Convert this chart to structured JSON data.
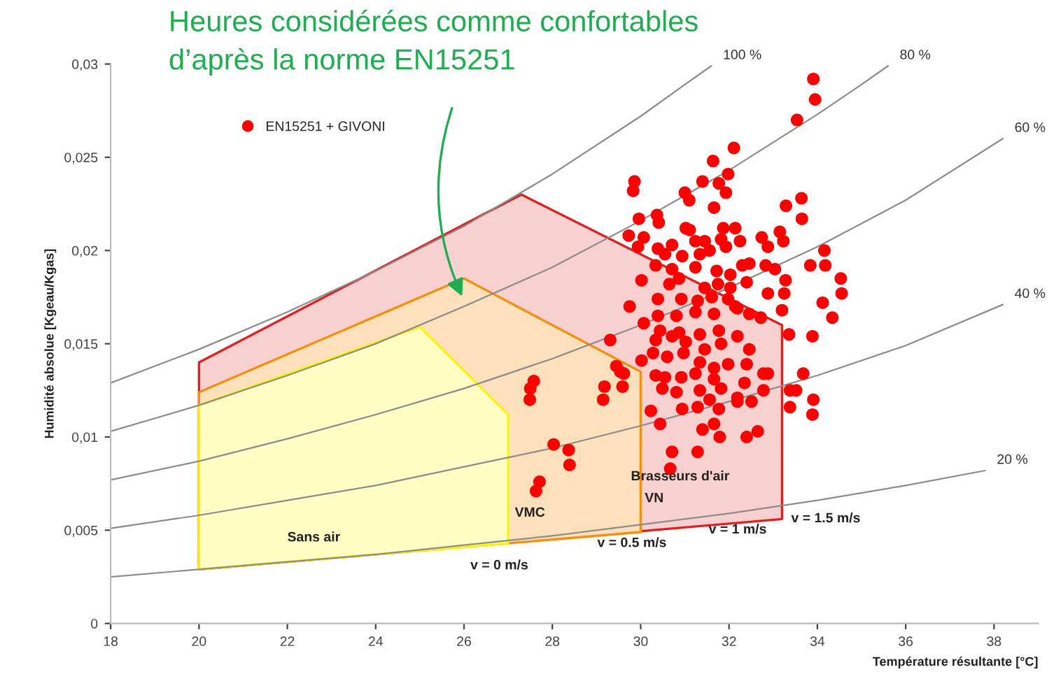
{
  "chart_data": {
    "type": "scatter",
    "title": "Heures considérées comme confortables\nd’après la norme EN15251",
    "xlabel": "Température résultante [°C]",
    "ylabel": "Humidité absolue [Kgeau/Kgas]",
    "xlim": [
      18,
      39
    ],
    "xticks": [
      18,
      20,
      22,
      24,
      26,
      28,
      30,
      32,
      34,
      36,
      38
    ],
    "ylim": [
      0,
      0.03
    ],
    "yticks": [
      {
        "value": 0,
        "label": "0"
      },
      {
        "value": 0.005,
        "label": "0,005"
      },
      {
        "value": 0.01,
        "label": "0,01"
      },
      {
        "value": 0.015,
        "label": "0,015"
      },
      {
        "value": 0.02,
        "label": "0,02"
      },
      {
        "value": 0.025,
        "label": "0,025"
      },
      {
        "value": 0.03,
        "label": "0,03"
      }
    ],
    "grid": false,
    "legend": "top left",
    "series": [
      {
        "type": "area",
        "name": "Brasseurs d'air",
        "color": "#f8d0d0",
        "x": [
          20,
          20,
          27.3,
          33.2,
          33.2
        ],
        "values": [
          0.0029,
          0.014,
          0.023,
          0.016,
          0.0056
        ]
      },
      {
        "type": "area",
        "name": "VMC",
        "color": "#fbe0bb",
        "x": [
          20,
          20,
          26,
          30,
          30
        ],
        "values": [
          0.0029,
          0.0124,
          0.0185,
          0.0135,
          0.0049
        ]
      },
      {
        "type": "area",
        "name": "Sans air",
        "color": "#fefdc4",
        "x": [
          20,
          20,
          25,
          27,
          27
        ],
        "values": [
          0.0029,
          0.0117,
          0.0159,
          0.0112,
          0.0043
        ]
      },
      {
        "type": "line",
        "name": "100 %",
        "color": "#8c8c8c",
        "x": [
          18,
          20,
          22,
          24,
          26,
          28,
          30,
          31,
          31.6
        ],
        "values": [
          0.0129,
          0.0147,
          0.0167,
          0.0189,
          0.0213,
          0.0241,
          0.0272,
          0.0289,
          0.0299
        ]
      },
      {
        "type": "line",
        "name": "80 %",
        "color": "#8c8c8c",
        "x": [
          18,
          20,
          22,
          24,
          26,
          28,
          30,
          32,
          34,
          35,
          35.6
        ],
        "values": [
          0.0103,
          0.0117,
          0.0133,
          0.015,
          0.017,
          0.0191,
          0.0216,
          0.0243,
          0.0273,
          0.0289,
          0.0299
        ]
      },
      {
        "type": "line",
        "name": "60 %",
        "color": "#8c8c8c",
        "x": [
          18,
          20,
          22,
          24,
          26,
          28,
          30,
          32,
          34,
          36,
          38.2
        ],
        "values": [
          0.0077,
          0.0087,
          0.0099,
          0.0112,
          0.0126,
          0.0142,
          0.016,
          0.018,
          0.0202,
          0.0227,
          0.026
        ]
      },
      {
        "type": "line",
        "name": "40 %",
        "color": "#8c8c8c",
        "x": [
          18,
          20,
          22,
          24,
          26,
          28,
          30,
          32,
          34,
          36,
          38.2
        ],
        "values": [
          0.0051,
          0.0058,
          0.0066,
          0.0074,
          0.0084,
          0.0094,
          0.0106,
          0.0119,
          0.0133,
          0.0149,
          0.0171
        ]
      },
      {
        "type": "line",
        "name": "20 %",
        "color": "#8c8c8c",
        "x": [
          18,
          20,
          22,
          24,
          26,
          28,
          30,
          32,
          34,
          36,
          37.8
        ],
        "values": [
          0.0025,
          0.0029,
          0.0033,
          0.0037,
          0.0042,
          0.0047,
          0.0053,
          0.0059,
          0.0066,
          0.0074,
          0.0082
        ]
      },
      {
        "name": "EN15251 + GIVONI",
        "color": "#ff0000",
        "x": [
          33.91,
          33.95,
          33.54,
          32.11,
          31.64,
          31.98,
          29.86,
          29.83,
          31.4,
          31.77,
          31.0,
          31.1,
          31.93,
          31.66,
          33.29,
          33.64,
          33.65,
          29.96,
          30.37,
          30.41,
          31.02,
          31.11,
          31.87,
          32.14,
          29.73,
          30.07,
          29.94,
          30.39,
          30.71,
          31.24,
          31.45,
          31.82,
          32.25,
          32.74,
          32.88,
          33.15,
          33.23,
          30.55,
          30.94,
          31.34,
          31.56,
          31.93,
          32.3,
          32.46,
          32.83,
          33.04,
          30.34,
          30.71,
          31.24,
          31.72,
          32.03,
          32.4,
          33.28,
          34.16,
          34.18,
          33.84,
          34.53,
          34.55,
          30.02,
          30.65,
          30.87,
          31.45,
          31.75,
          32.03,
          32.88,
          33.25,
          30.39,
          30.92,
          31.29,
          31.61,
          31.98,
          32.14,
          29.75,
          30.39,
          30.81,
          31.24,
          31.66,
          32.19,
          32.46,
          32.72,
          33.2,
          34.12,
          34.34,
          30.07,
          30.44,
          30.87,
          31.34,
          31.77,
          32.19,
          33.36,
          33.89,
          29.31,
          30.34,
          30.71,
          31.02,
          31.45,
          31.82,
          32.46,
          30.02,
          30.28,
          30.6,
          30.97,
          31.34,
          31.66,
          31.98,
          32.4,
          30.34,
          30.55,
          30.92,
          31.24,
          31.66,
          32.35,
          32.78,
          32.88,
          33.68,
          30.49,
          30.81,
          31.34,
          31.82,
          32.19,
          32.78,
          33.38,
          33.52,
          30.23,
          30.44,
          30.94,
          31.29,
          31.56,
          31.77,
          32.19,
          32.51,
          33.38,
          33.91,
          33.89,
          31.4,
          31.66,
          31.79,
          32.4,
          32.65,
          30.71,
          31.29,
          30.67,
          29.45,
          29.54,
          29.62,
          29.59,
          29.18,
          29.15,
          27.58,
          27.5,
          27.49,
          28.03,
          28.37,
          28.39,
          27.71,
          27.63
        ],
        "values": [
          0.0292,
          0.0281,
          0.027,
          0.0255,
          0.0248,
          0.0241,
          0.0237,
          0.0232,
          0.0237,
          0.0236,
          0.0231,
          0.0227,
          0.0231,
          0.0223,
          0.0224,
          0.0228,
          0.0217,
          0.0217,
          0.0219,
          0.0215,
          0.0212,
          0.0211,
          0.0212,
          0.0212,
          0.0208,
          0.0207,
          0.0202,
          0.0201,
          0.0203,
          0.0205,
          0.0205,
          0.0206,
          0.0205,
          0.0207,
          0.0202,
          0.021,
          0.0205,
          0.0198,
          0.0197,
          0.0198,
          0.02,
          0.0202,
          0.0192,
          0.0193,
          0.0192,
          0.019,
          0.0192,
          0.019,
          0.0191,
          0.0189,
          0.0187,
          0.0183,
          0.0184,
          0.02,
          0.0192,
          0.0192,
          0.0185,
          0.0177,
          0.0184,
          0.0182,
          0.0185,
          0.018,
          0.0182,
          0.018,
          0.0177,
          0.0177,
          0.0174,
          0.0174,
          0.0173,
          0.0175,
          0.0174,
          0.017,
          0.017,
          0.0165,
          0.0165,
          0.0167,
          0.0166,
          0.0169,
          0.0166,
          0.0164,
          0.0168,
          0.0172,
          0.0164,
          0.0161,
          0.0157,
          0.0156,
          0.0155,
          0.0157,
          0.0154,
          0.0155,
          0.0154,
          0.0152,
          0.0152,
          0.0154,
          0.0151,
          0.0147,
          0.015,
          0.0147,
          0.0141,
          0.0145,
          0.0143,
          0.0145,
          0.014,
          0.0137,
          0.0139,
          0.0139,
          0.0133,
          0.0132,
          0.0132,
          0.0134,
          0.0131,
          0.0129,
          0.0134,
          0.0134,
          0.0134,
          0.0126,
          0.0124,
          0.0125,
          0.0126,
          0.0121,
          0.0125,
          0.0125,
          0.0125,
          0.0114,
          0.0107,
          0.0115,
          0.0116,
          0.012,
          0.0115,
          0.0119,
          0.0119,
          0.0116,
          0.012,
          0.0112,
          0.0104,
          0.0107,
          0.01,
          0.01,
          0.0103,
          0.0092,
          0.0092,
          0.0083,
          0.0138,
          0.0135,
          0.0134,
          0.0127,
          0.0127,
          0.012,
          0.013,
          0.0126,
          0.012,
          0.0096,
          0.0093,
          0.0085,
          0.0076,
          0.0071
        ]
      }
    ],
    "annotations": [
      "VN",
      "v = 0 m/s",
      "v = 0.5 m/s",
      "v = 1 m/s",
      "v = 1.5 m/s"
    ]
  }
}
